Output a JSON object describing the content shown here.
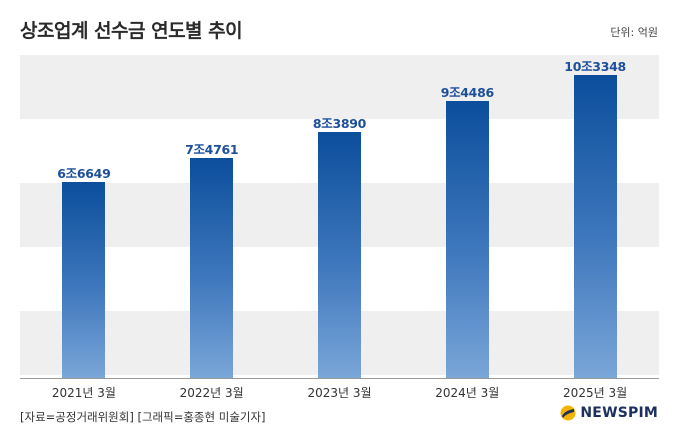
{
  "title": "상조업계 선수금 연도별 추이",
  "unit": "단위: 억원",
  "source": "[자료=공정거래위원회] [그래픽=홍종현 미술기자]",
  "logo": "NEWSPIM",
  "chart_data": {
    "type": "bar",
    "categories": [
      "2021년 3월",
      "2022년 3월",
      "2023년 3월",
      "2024년 3월",
      "2025년 3월"
    ],
    "values": [
      66649,
      74761,
      83890,
      94486,
      103348
    ],
    "data_labels": [
      "6조6649",
      "7조4761",
      "8조3890",
      "9조4486",
      "10조3348"
    ],
    "ylim": [
      0,
      110000
    ],
    "grid": true,
    "colors": {
      "bar_top": "#0b4e9c",
      "bar_bottom": "#7aa6d8",
      "label": "#1d4f9a"
    }
  }
}
